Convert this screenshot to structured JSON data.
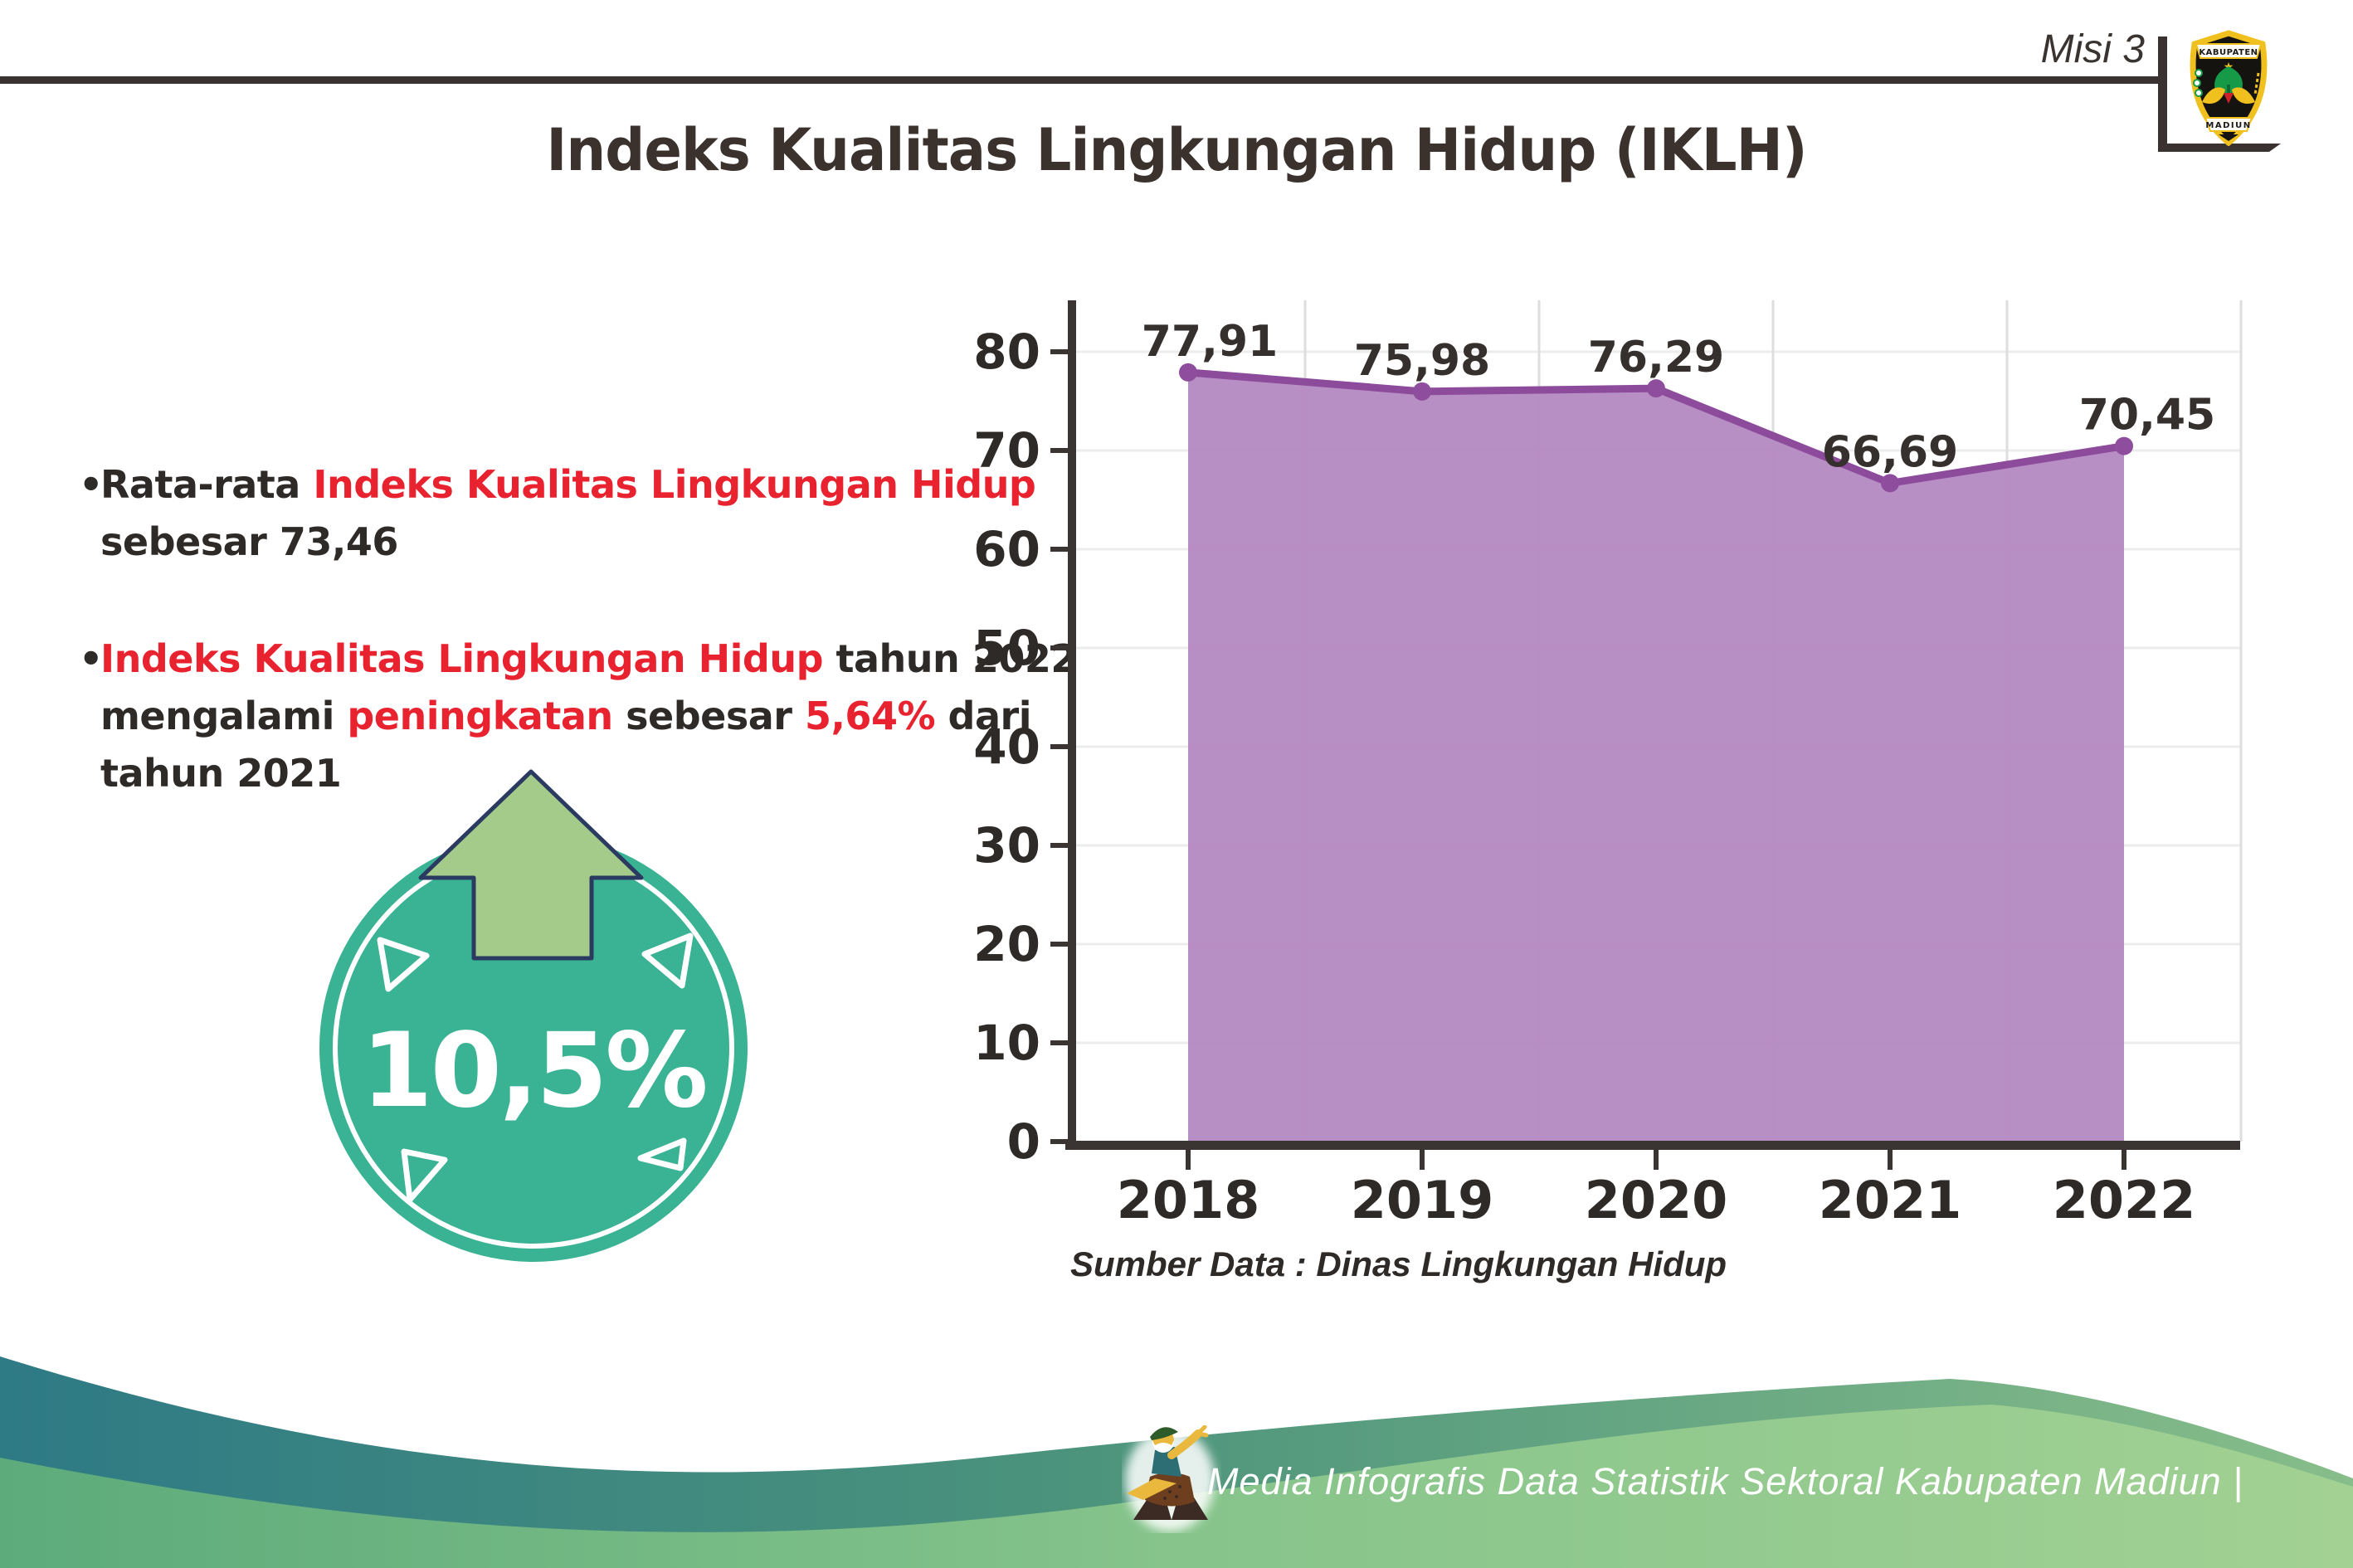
{
  "header": {
    "misi_label": "Misi 3",
    "emblem": {
      "top_text": "KABUPATEN",
      "bottom_text": "MADIUN"
    }
  },
  "title": "Indeks Kualitas Lingkungan Hidup (IKLH)",
  "bullets": [
    {
      "lines": [
        [
          {
            "text": "Rata-rata ",
            "style": "dark"
          },
          {
            "text": "Indeks Kualitas Lingkungan Hidup",
            "style": "red"
          }
        ],
        [
          {
            "text": "sebesar 73,46",
            "style": "dark"
          }
        ]
      ]
    },
    {
      "lines": [
        [
          {
            "text": "Indeks Kualitas Lingkungan Hidup",
            "style": "red"
          },
          {
            "text": " tahun 2022",
            "style": "dark"
          }
        ],
        [
          {
            "text": "mengalami ",
            "style": "dark"
          },
          {
            "text": "peningkatan",
            "style": "red"
          },
          {
            "text": " sebesar ",
            "style": "dark"
          },
          {
            "text": "5,64%",
            "style": "red"
          },
          {
            "text": " dari",
            "style": "dark"
          }
        ],
        [
          {
            "text": "tahun 2021",
            "style": "dark"
          }
        ]
      ]
    }
  ],
  "badge": {
    "value_label": "10,5%",
    "colors": {
      "circle": "#3ab294",
      "arrow": "#a5cb8b",
      "outline": "#2b3a60"
    }
  },
  "chart_data": {
    "type": "area",
    "title": "",
    "categories": [
      "2018",
      "2019",
      "2020",
      "2021",
      "2022"
    ],
    "values": [
      77.91,
      75.98,
      76.29,
      66.69,
      70.45
    ],
    "value_labels": [
      "77,91",
      "75,98",
      "76,29",
      "66,69",
      "70,45"
    ],
    "xlabel": "",
    "ylabel": "",
    "ylim": [
      0,
      85
    ],
    "yticks": [
      0,
      10,
      20,
      30,
      40,
      50,
      60,
      70,
      80
    ],
    "grid": true,
    "legend": "none",
    "source_note": "Sumber Data : Dinas Lingkungan Hidup",
    "colors": {
      "line": "#8d4b9c",
      "fill": "#b489c1",
      "marker": "#8f4d9e",
      "axis": "#3a3432",
      "tick_label": "#2e2a28"
    }
  },
  "footer": {
    "caption": "Media Infografis Data Statistik Sektoral Kabupaten Madiun |",
    "colors": {
      "band_start": "#2e7a85",
      "band_end": "#87bd8a",
      "body_start": "#5dab7b",
      "body_end": "#a2d193"
    }
  }
}
